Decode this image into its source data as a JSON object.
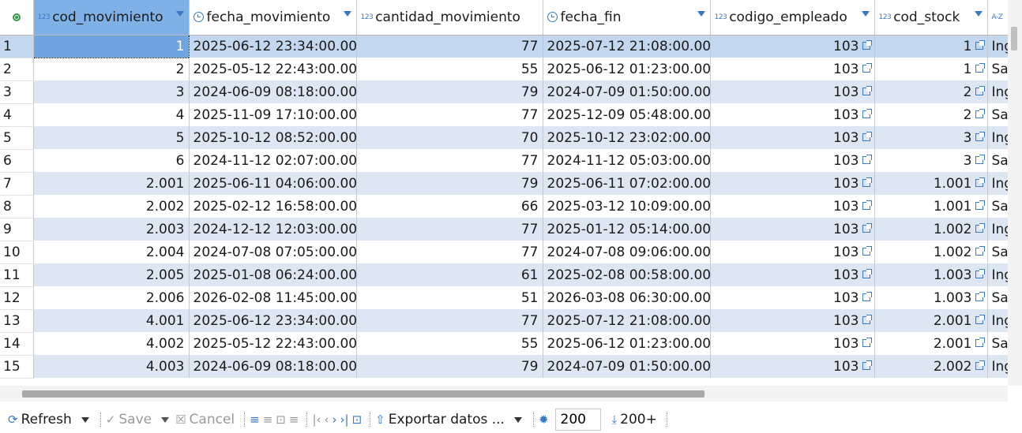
{
  "columns": [
    {
      "name": "cod_movimiento",
      "type": "123",
      "kind": "num"
    },
    {
      "name": "fecha_movimiento",
      "type": "clock",
      "kind": "date"
    },
    {
      "name": "cantidad_movimiento",
      "type": "123",
      "kind": "num"
    },
    {
      "name": "fecha_fin",
      "type": "clock",
      "kind": "date"
    },
    {
      "name": "codigo_empleado",
      "type": "123",
      "kind": "num"
    },
    {
      "name": "cod_stock",
      "type": "123",
      "kind": "num"
    },
    {
      "name": "",
      "type": "A-Z",
      "kind": "text"
    }
  ],
  "rows": [
    {
      "n": "1",
      "cod": "1",
      "fecha": "2025-06-12 23:34:00.000",
      "cant": "77",
      "fin": "2025-07-12 21:08:00.000",
      "emp": "103",
      "stock": "1",
      "tipo": "Ing"
    },
    {
      "n": "2",
      "cod": "2",
      "fecha": "2025-05-12 22:43:00.000",
      "cant": "55",
      "fin": "2025-06-12 01:23:00.000",
      "emp": "103",
      "stock": "1",
      "tipo": "Sa"
    },
    {
      "n": "3",
      "cod": "3",
      "fecha": "2024-06-09 08:18:00.000",
      "cant": "79",
      "fin": "2024-07-09 01:50:00.000",
      "emp": "103",
      "stock": "2",
      "tipo": "Ing"
    },
    {
      "n": "4",
      "cod": "4",
      "fecha": "2025-11-09 17:10:00.000",
      "cant": "77",
      "fin": "2025-12-09 05:48:00.000",
      "emp": "103",
      "stock": "2",
      "tipo": "Sa"
    },
    {
      "n": "5",
      "cod": "5",
      "fecha": "2025-10-12 08:52:00.000",
      "cant": "70",
      "fin": "2025-10-12 23:02:00.000",
      "emp": "103",
      "stock": "3",
      "tipo": "Ing"
    },
    {
      "n": "6",
      "cod": "6",
      "fecha": "2024-11-12 02:07:00.000",
      "cant": "77",
      "fin": "2024-11-12 05:03:00.000",
      "emp": "103",
      "stock": "3",
      "tipo": "Sa"
    },
    {
      "n": "7",
      "cod": "2.001",
      "fecha": "2025-06-11 04:06:00.000",
      "cant": "79",
      "fin": "2025-06-11 07:02:00.000",
      "emp": "103",
      "stock": "1.001",
      "tipo": "Ing"
    },
    {
      "n": "8",
      "cod": "2.002",
      "fecha": "2025-02-12 16:58:00.000",
      "cant": "66",
      "fin": "2025-03-12 10:09:00.000",
      "emp": "103",
      "stock": "1.001",
      "tipo": "Sa"
    },
    {
      "n": "9",
      "cod": "2.003",
      "fecha": "2024-12-12 12:03:00.000",
      "cant": "77",
      "fin": "2025-01-12 05:14:00.000",
      "emp": "103",
      "stock": "1.002",
      "tipo": "Ing"
    },
    {
      "n": "10",
      "cod": "2.004",
      "fecha": "2024-07-08 07:05:00.000",
      "cant": "77",
      "fin": "2024-07-08 09:06:00.000",
      "emp": "103",
      "stock": "1.002",
      "tipo": "Sa"
    },
    {
      "n": "11",
      "cod": "2.005",
      "fecha": "2025-01-08 06:24:00.000",
      "cant": "61",
      "fin": "2025-02-08 00:58:00.000",
      "emp": "103",
      "stock": "1.003",
      "tipo": "Ing"
    },
    {
      "n": "12",
      "cod": "2.006",
      "fecha": "2026-02-08 11:45:00.000",
      "cant": "51",
      "fin": "2026-03-08 06:30:00.000",
      "emp": "103",
      "stock": "1.003",
      "tipo": "Sa"
    },
    {
      "n": "13",
      "cod": "4.001",
      "fecha": "2025-06-12 23:34:00.000",
      "cant": "77",
      "fin": "2025-07-12 21:08:00.000",
      "emp": "103",
      "stock": "2.001",
      "tipo": "Ing"
    },
    {
      "n": "14",
      "cod": "4.002",
      "fecha": "2025-05-12 22:43:00.000",
      "cant": "55",
      "fin": "2025-06-12 01:23:00.000",
      "emp": "103",
      "stock": "2.001",
      "tipo": "Sa"
    },
    {
      "n": "15",
      "cod": "4.003",
      "fecha": "2024-06-09 08:18:00.000",
      "cant": "79",
      "fin": "2024-07-09 01:50:00.000",
      "emp": "103",
      "stock": "2.002",
      "tipo": "Ing"
    }
  ],
  "toolbar": {
    "refresh": "Refresh",
    "save": "Save",
    "cancel": "Cancel",
    "export": "Exportar datos ...",
    "fetch_size": "200",
    "fetch_all": "200+"
  },
  "colors": {
    "accent": "#3b78c2",
    "row_alt": "#dde7f3",
    "selected": "#6ea4e0"
  }
}
